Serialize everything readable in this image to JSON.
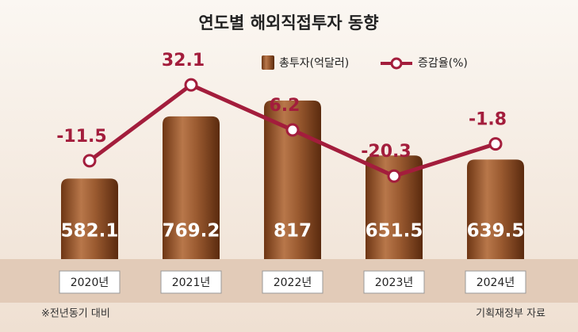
{
  "chart_data": {
    "type": "bar_line",
    "title": "연도별 해외직접투자 동향",
    "categories": [
      "2020년",
      "2021년",
      "2022년",
      "2023년",
      "2024년"
    ],
    "series": [
      {
        "name": "총투자(억달러)",
        "type": "bar",
        "color": "#8a4a22",
        "values": [
          582.1,
          769.2,
          817,
          651.5,
          639.5
        ]
      },
      {
        "name": "증감율(%)",
        "type": "line",
        "axis": "y2",
        "color": "#a31d3c",
        "values": [
          -11.5,
          32.1,
          6.2,
          -20.3,
          -1.8
        ]
      }
    ],
    "ylim": [
      340,
      900
    ],
    "y2lim": [
      -68,
      39
    ],
    "note": "※전년동기 대비",
    "source": "기획재정부 자료"
  }
}
